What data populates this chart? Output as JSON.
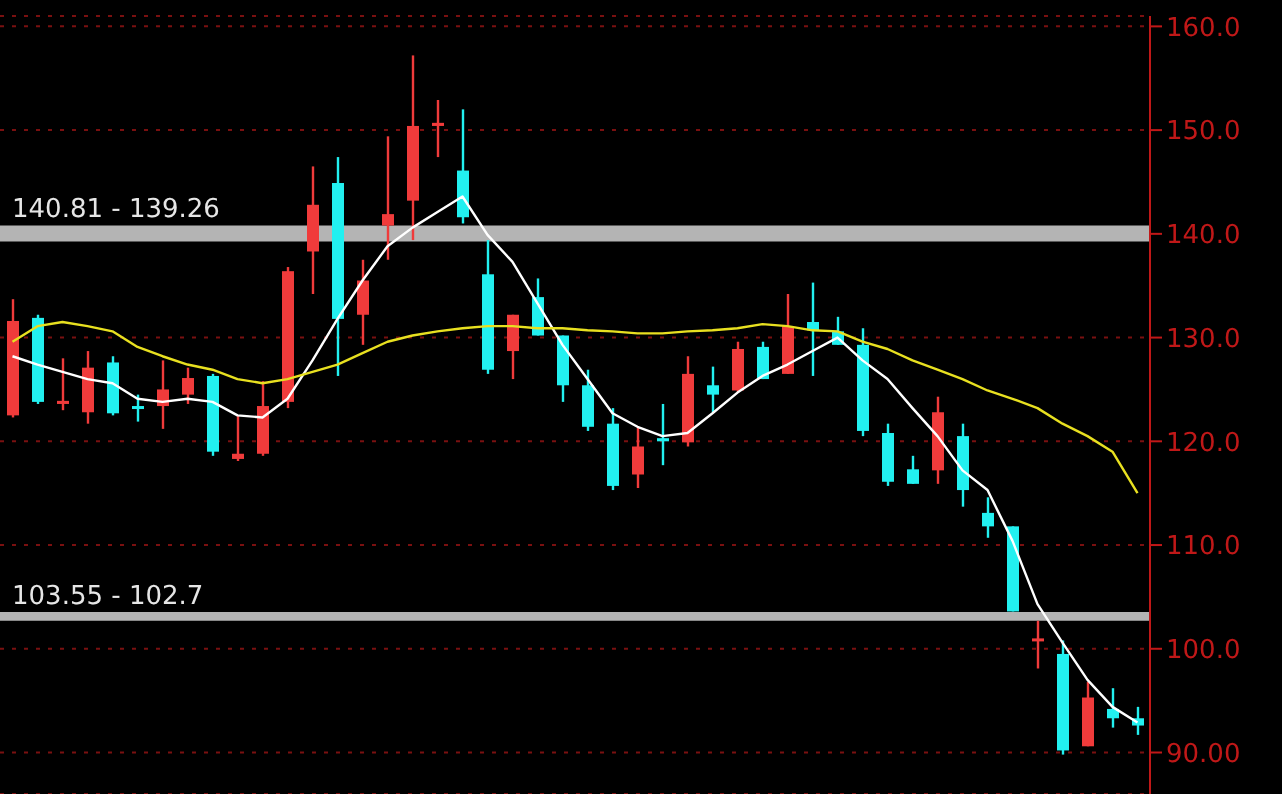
{
  "chart_data": {
    "type": "candlestick",
    "categories": [
      null,
      null,
      null,
      null,
      null,
      null,
      null,
      null,
      null,
      null,
      null,
      null,
      null,
      null,
      null,
      null,
      null,
      null,
      null,
      null,
      null,
      null,
      null,
      null,
      null,
      null,
      null,
      null,
      null,
      null,
      null,
      null,
      null,
      null,
      null,
      null,
      null,
      null,
      null,
      null,
      null,
      null,
      null,
      null,
      null,
      null
    ],
    "ohlc": [
      [
        122.5,
        133.7,
        122.3,
        131.6
      ],
      [
        131.9,
        132.2,
        123.6,
        123.8
      ],
      [
        123.6,
        128.0,
        123.0,
        123.9
      ],
      [
        122.8,
        128.7,
        121.7,
        127.1
      ],
      [
        127.6,
        128.2,
        122.5,
        122.7
      ],
      [
        123.4,
        124.5,
        121.9,
        123.2
      ],
      [
        123.4,
        127.8,
        121.2,
        125.0
      ],
      [
        124.5,
        127.1,
        123.6,
        126.1
      ],
      [
        126.3,
        126.5,
        118.6,
        119.0
      ],
      [
        118.3,
        122.5,
        118.1,
        118.8
      ],
      [
        118.8,
        125.8,
        118.6,
        123.4
      ],
      [
        123.8,
        136.8,
        123.2,
        136.4
      ],
      [
        138.3,
        146.5,
        134.2,
        142.8
      ],
      [
        144.9,
        147.4,
        126.3,
        131.8
      ],
      [
        132.2,
        137.5,
        129.3,
        135.5
      ],
      [
        140.8,
        149.4,
        137.5,
        141.9
      ],
      [
        143.2,
        157.2,
        139.4,
        150.4
      ],
      [
        150.4,
        152.9,
        147.4,
        150.7
      ],
      [
        146.1,
        152.0,
        141.0,
        141.6
      ],
      [
        136.1,
        139.4,
        126.5,
        126.9
      ],
      [
        128.7,
        132.2,
        126.0,
        132.2
      ],
      [
        133.9,
        135.7,
        130.2,
        130.2
      ],
      [
        130.2,
        130.2,
        123.8,
        125.4
      ],
      [
        125.4,
        126.9,
        121.0,
        121.4
      ],
      [
        121.7,
        123.2,
        115.3,
        115.7
      ],
      [
        116.8,
        121.4,
        115.5,
        119.5
      ],
      [
        120.3,
        123.6,
        117.7,
        120.0
      ],
      [
        119.9,
        128.2,
        119.5,
        126.5
      ],
      [
        125.4,
        127.2,
        122.8,
        124.5
      ],
      [
        124.9,
        129.6,
        124.7,
        128.9
      ],
      [
        129.1,
        129.6,
        126.0,
        126.0
      ],
      [
        126.5,
        134.2,
        126.5,
        131.1
      ],
      [
        131.5,
        135.3,
        126.3,
        130.7
      ],
      [
        130.6,
        132.0,
        129.3,
        129.3
      ],
      [
        129.3,
        130.9,
        120.5,
        121.0
      ],
      [
        120.8,
        121.7,
        115.7,
        116.1
      ],
      [
        117.3,
        118.6,
        115.9,
        115.9
      ],
      [
        117.2,
        124.3,
        115.9,
        122.8
      ],
      [
        120.5,
        121.7,
        113.7,
        115.3
      ],
      [
        113.1,
        114.6,
        110.7,
        111.8
      ],
      [
        111.8,
        111.8,
        103.6,
        103.6
      ],
      [
        100.8,
        102.7,
        98.1,
        101.0
      ],
      [
        99.5,
        100.8,
        89.8,
        90.2
      ],
      [
        90.6,
        96.8,
        90.6,
        95.3
      ],
      [
        94.2,
        96.2,
        92.4,
        93.3
      ],
      [
        93.3,
        94.4,
        91.7,
        92.6
      ]
    ],
    "colors": [
      "#f03b3b",
      "#22f0f0",
      "#f03b3b",
      "#f03b3b",
      "#22f0f0",
      "#22f0f0",
      "#f03b3b",
      "#f03b3b",
      "#22f0f0",
      "#f03b3b",
      "#f03b3b",
      "#f03b3b",
      "#f03b3b",
      "#22f0f0",
      "#f03b3b",
      "#f03b3b",
      "#f03b3b",
      "#f03b3b",
      "#22f0f0",
      "#22f0f0",
      "#f03b3b",
      "#22f0f0",
      "#22f0f0",
      "#22f0f0",
      "#22f0f0",
      "#f03b3b",
      "#22f0f0",
      "#f03b3b",
      "#22f0f0",
      "#f03b3b",
      "#22f0f0",
      "#f03b3b",
      "#22f0f0",
      "#22f0f0",
      "#22f0f0",
      "#22f0f0",
      "#22f0f0",
      "#f03b3b",
      "#22f0f0",
      "#22f0f0",
      "#22f0f0",
      "#f03b3b",
      "#22f0f0",
      "#f03b3b",
      "#22f0f0",
      "#22f0f0"
    ],
    "series": [
      {
        "type": "line",
        "color": "#ffffff",
        "values": [
          128.2,
          127.4,
          126.7,
          126.0,
          125.6,
          124.1,
          123.8,
          124.1,
          123.8,
          122.5,
          122.3,
          124.1,
          127.8,
          131.8,
          135.5,
          138.8,
          140.6,
          142.1,
          143.6,
          139.9,
          137.3,
          133.3,
          129.3,
          126.0,
          122.7,
          121.4,
          120.5,
          120.8,
          122.7,
          124.7,
          126.3,
          127.4,
          128.7,
          130.0,
          127.8,
          126.0,
          123.2,
          120.5,
          117.2,
          115.3,
          110.4,
          104.3,
          100.6,
          97.0,
          94.4,
          92.9
        ]
      },
      {
        "type": "line",
        "color": "#e8e020",
        "values": [
          129.6,
          131.1,
          131.5,
          131.1,
          130.6,
          129.1,
          128.2,
          127.4,
          126.9,
          126.0,
          125.6,
          126.0,
          126.7,
          127.4,
          128.5,
          129.6,
          130.2,
          130.6,
          130.9,
          131.1,
          131.1,
          130.9,
          130.9,
          130.7,
          130.6,
          130.4,
          130.4,
          130.6,
          130.7,
          130.9,
          131.3,
          131.1,
          130.7,
          130.6,
          129.6,
          128.9,
          127.8,
          126.9,
          126.0,
          124.9,
          124.1,
          123.2,
          121.7,
          120.5,
          119.0,
          115.0
        ]
      }
    ],
    "ylim": [
      86,
      161
    ],
    "yticks": [
      {
        "value": 90,
        "label": "90.00"
      },
      {
        "value": 100,
        "label": "100.0"
      },
      {
        "value": 110,
        "label": "110.0"
      },
      {
        "value": 120,
        "label": "120.0"
      },
      {
        "value": 130,
        "label": "130.0"
      },
      {
        "value": 140,
        "label": "140.0"
      },
      {
        "value": 150,
        "label": "150.0"
      },
      {
        "value": 160,
        "label": "160.0"
      }
    ],
    "bands": [
      {
        "axis": "y",
        "from": 139.26,
        "to": 140.81,
        "label": "140.81 - 139.26",
        "color": "#b4b4b4"
      },
      {
        "axis": "y",
        "from": 102.7,
        "to": 103.55,
        "label": "103.55 - 102.7",
        "color": "#b4b4b4"
      }
    ],
    "grid": "y",
    "tick_labels": "y",
    "marker": "none",
    "line_style": "solid"
  }
}
